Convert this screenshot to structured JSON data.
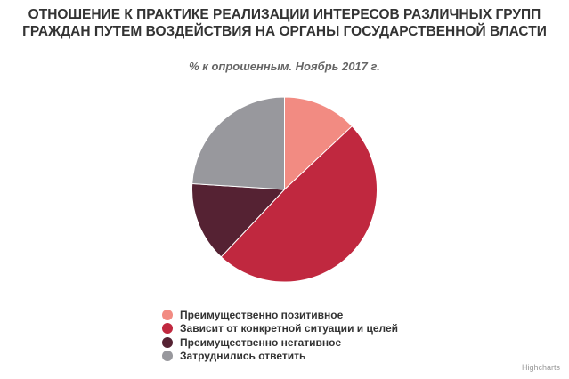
{
  "chart_data": {
    "type": "pie",
    "title": "ОТНОШЕНИЕ К ПРАКТИКЕ РЕАЛИЗАЦИИ ИНТЕРЕСОВ РАЗЛИЧНЫХ ГРУПП ГРАЖДАН ПУТЕМ ВОЗДЕЙСТВИЯ НА ОРГАНЫ ГОСУДАРСТВЕННОЙ ВЛАСТИ",
    "subtitle": "% к опрошенным. Ноябрь 2017 г.",
    "legend_position": "bottom",
    "slices": [
      {
        "name": "Преимущественно позитивное",
        "value": 13,
        "color": "#f28b82"
      },
      {
        "name": "Зависит от конкретной ситуации и целей",
        "value": 49,
        "color": "#c0283f"
      },
      {
        "name": "Преимущественно негативное",
        "value": 14,
        "color": "#552233"
      },
      {
        "name": "Затруднились ответить",
        "value": 24,
        "color": "#98989d"
      }
    ]
  },
  "credits": "Highcharts"
}
